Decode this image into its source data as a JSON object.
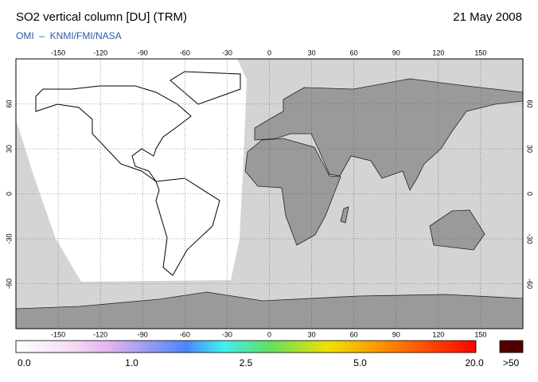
{
  "header": {
    "title": "SO2 vertical column [DU] (TRM)",
    "date": "21 May 2008",
    "subtitle": "OMI  –  KNMI/FMI/NASA"
  },
  "map": {
    "lon_ticks": [
      -150,
      -120,
      -90,
      -60,
      -30,
      0,
      30,
      60,
      90,
      120,
      150
    ],
    "lat_ticks": [
      60,
      30,
      0,
      -30,
      -60
    ]
  },
  "colorbar": {
    "labels": [
      "0.0",
      "1.0",
      "2.5",
      "5.0",
      "20.0"
    ],
    "overflow_label": ">50"
  }
}
